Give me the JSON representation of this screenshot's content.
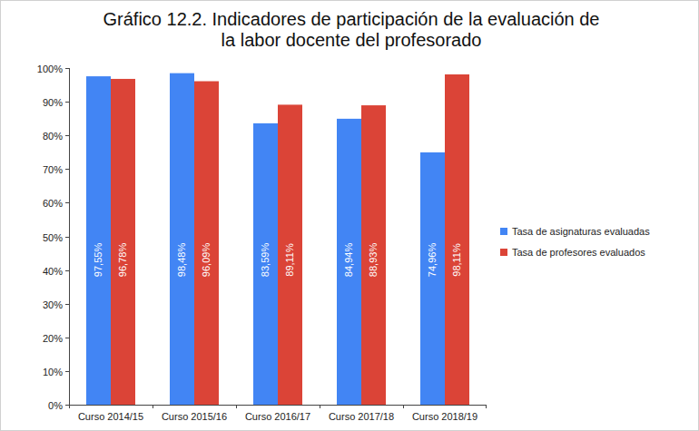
{
  "chart_data": {
    "type": "bar",
    "title": "Gráfico 12.2. Indicadores de participación de la evaluación de la labor docente del profesorado",
    "categories": [
      "Curso 2014/15",
      "Curso 2015/16",
      "Curso 2016/17",
      "Curso 2017/18",
      "Curso 2018/19"
    ],
    "series": [
      {
        "name": "Tasa de asignaturas evaluadas",
        "color": "#4285f4",
        "values": [
          97.55,
          98.48,
          83.59,
          84.94,
          74.96
        ],
        "value_labels": [
          "97,55%",
          "98,48%",
          "83,59%",
          "84,94%",
          "74,96%"
        ]
      },
      {
        "name": "Tasa de profesores evaluados",
        "color": "#db4437",
        "values": [
          96.78,
          96.09,
          89.11,
          88.93,
          98.11
        ],
        "value_labels": [
          "96,78%",
          "96,09%",
          "89,11%",
          "88,93%",
          "98,11%"
        ]
      }
    ],
    "ylim": [
      0,
      100
    ],
    "yticks": [
      {
        "value": 0,
        "label": "0%"
      },
      {
        "value": 10,
        "label": "10%"
      },
      {
        "value": 20,
        "label": "20%"
      },
      {
        "value": 30,
        "label": "30%"
      },
      {
        "value": 40,
        "label": "40%"
      },
      {
        "value": 50,
        "label": "50%"
      },
      {
        "value": 60,
        "label": "60%"
      },
      {
        "value": 70,
        "label": "70%"
      },
      {
        "value": 80,
        "label": "80%"
      },
      {
        "value": 90,
        "label": "90%"
      },
      {
        "value": 100,
        "label": "100%"
      }
    ],
    "grid": false,
    "legend": "right",
    "data_labels": true
  }
}
